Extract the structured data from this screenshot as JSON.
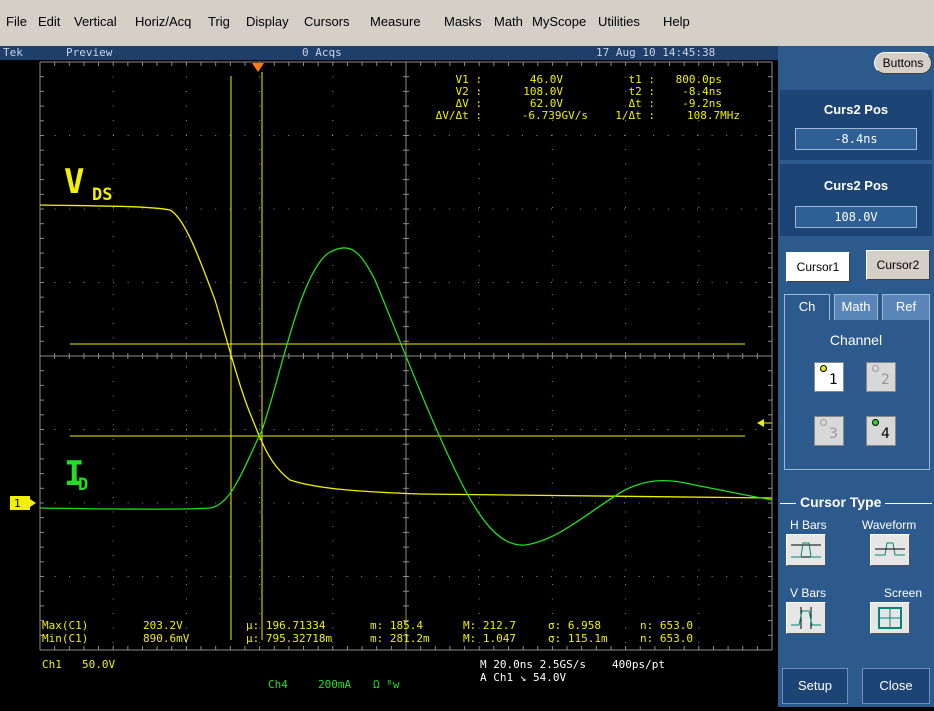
{
  "menu": [
    "File",
    "Edit",
    "Vertical",
    "Horiz/Acq",
    "Trig",
    "Display",
    "Cursors",
    "Measure",
    "Masks",
    "Math",
    "MyScope",
    "Utilities",
    "Help"
  ],
  "status": {
    "brand": "Tek",
    "mode": "Preview",
    "acqs": "0 Acqs",
    "datetime": "17 Aug 10 14:45:38"
  },
  "readout": {
    "v1_label": "V1 :",
    "v1": "46.0V",
    "v2_label": "V2 :",
    "v2": "108.0V",
    "dv_label": "ΔV :",
    "dv": "62.0V",
    "dvdt_label": "ΔV/Δt :",
    "dvdt": "-6.739GV/s",
    "t1_label": "t1 :",
    "t1": "800.0ps",
    "t2_label": "t2 :",
    "t2": "-8.4ns",
    "dt_label": "Δt :",
    "dt": "-9.2ns",
    "invdt_label": "1/Δt :",
    "invdt": "108.7MHz"
  },
  "annot": {
    "vds_main": "V",
    "vds_sub": "DS",
    "id_main": "I",
    "id_sub": "D"
  },
  "ch1_marker": "1",
  "stats": {
    "row1": {
      "label": "Max(C1)",
      "val": "203.2V",
      "mu": "μ: 196.71334",
      "m": "m: 185.4",
      "M": "M: 212.7",
      "sigma": "σ: 6.958",
      "n": "n: 653.0"
    },
    "row2": {
      "label": "Min(C1)",
      "val": "890.6mV",
      "mu": "μ: 795.32718m",
      "m": "m: 281.2m",
      "M": "M: 1.047",
      "sigma": "σ: 115.1m",
      "n": "n: 653.0"
    }
  },
  "footer": {
    "ch1": "Ch1",
    "ch1_scale": "50.0V",
    "ch4": "Ch4",
    "ch4_scale": "200mA",
    "ch4_flags": "Ω ᴮw",
    "timebase": "M 20.0ns 2.5GS/s",
    "ptinfo": "400ps/pt",
    "trigger": "A  Ch1  ↘  54.0V"
  },
  "panel": {
    "buttons": "Buttons",
    "curs2pos_title_a": "Curs2 Pos",
    "curs2pos_val_a": "-8.4ns",
    "curs2pos_title_b": "Curs2 Pos",
    "curs2pos_val_b": "108.0V",
    "cursor1": "Cursor1",
    "cursor2": "Cursor2",
    "tabs": [
      "Ch",
      "Math",
      "Ref"
    ],
    "channel_label": "Channel",
    "channels": [
      "1",
      "2",
      "3",
      "4"
    ],
    "cursor_type_title": "Cursor Type",
    "hbars": "H Bars",
    "waveform": "Waveform",
    "vbars": "V Bars",
    "screen": "Screen",
    "setup": "Setup",
    "close": "Close"
  },
  "colors": {
    "ch1": "#f0f000",
    "ch4": "#22dd22",
    "cursor": "#f0f000",
    "grid": "#8c8c8c"
  }
}
